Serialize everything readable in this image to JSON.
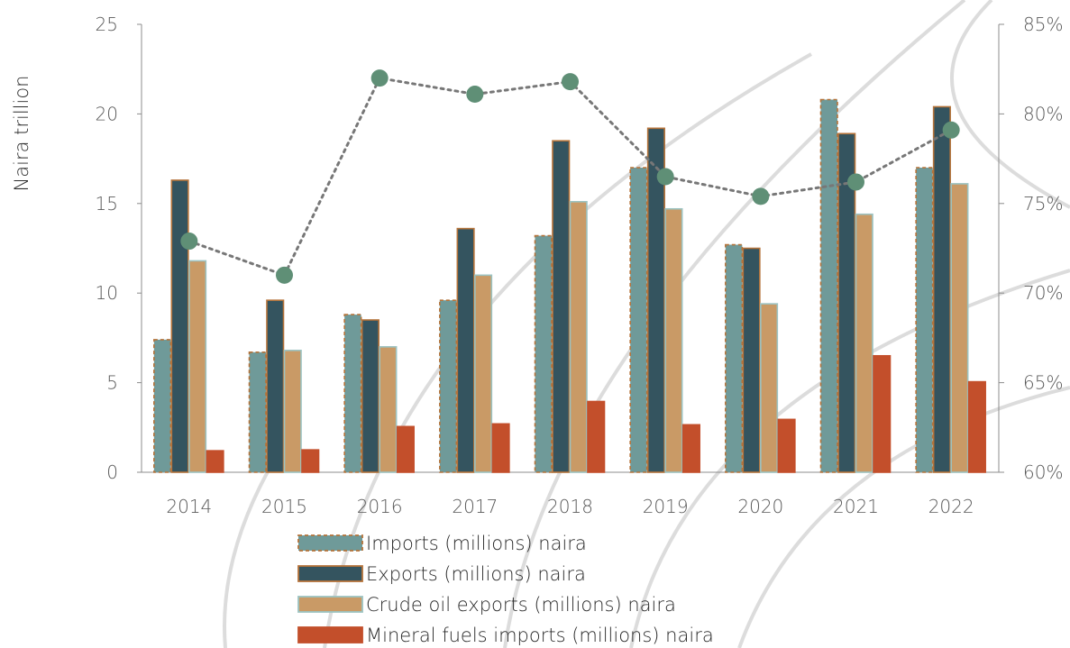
{
  "chart_data": {
    "type": "bar",
    "categories": [
      "2014",
      "2015",
      "2016",
      "2017",
      "2018",
      "2019",
      "2020",
      "2021",
      "2022"
    ],
    "ylabel": "Naira trillion",
    "ylim": [
      0,
      25
    ],
    "yticks": [
      "0",
      "5",
      "10",
      "15",
      "20",
      "25"
    ],
    "y2lim": [
      60,
      85
    ],
    "y2ticks": [
      "60%",
      "65%",
      "70%",
      "75%",
      "80%",
      "85%"
    ],
    "legend_position": "bottom",
    "grid": false,
    "series": [
      {
        "name": "Imports (millions) naira",
        "type": "bar",
        "color": "#6f9a99",
        "edge": "#b5733a",
        "dashed": true,
        "values": [
          7.4,
          6.7,
          8.8,
          9.6,
          13.2,
          17.0,
          12.7,
          20.8,
          17.0
        ]
      },
      {
        "name": "Exports (millions) naira",
        "type": "bar",
        "color": "#34545f",
        "edge": "#b5733a",
        "dashed": false,
        "values": [
          16.3,
          9.6,
          8.5,
          13.6,
          18.5,
          19.2,
          12.5,
          18.9,
          20.4
        ]
      },
      {
        "name": "Crude oil exports (millions) naira",
        "type": "bar",
        "color": "#c99a66",
        "edge": "#9cc3c1",
        "dashed": false,
        "values": [
          11.8,
          6.8,
          7.0,
          11.0,
          15.1,
          14.7,
          9.4,
          14.4,
          16.1
        ]
      },
      {
        "name": "Mineral fuels imports (millions) naira",
        "type": "bar",
        "color": "#c34f2b",
        "edge": "#c34f2b",
        "dashed": false,
        "values": [
          1.2,
          1.25,
          2.55,
          2.7,
          3.95,
          2.65,
          2.95,
          6.5,
          5.05
        ]
      },
      {
        "name": "",
        "type": "line",
        "axis": "right",
        "color": "#5f8f76",
        "linecolor": "#777777",
        "values": [
          72.9,
          71.0,
          82.0,
          81.1,
          81.8,
          76.5,
          75.4,
          76.2,
          79.1
        ]
      }
    ]
  }
}
